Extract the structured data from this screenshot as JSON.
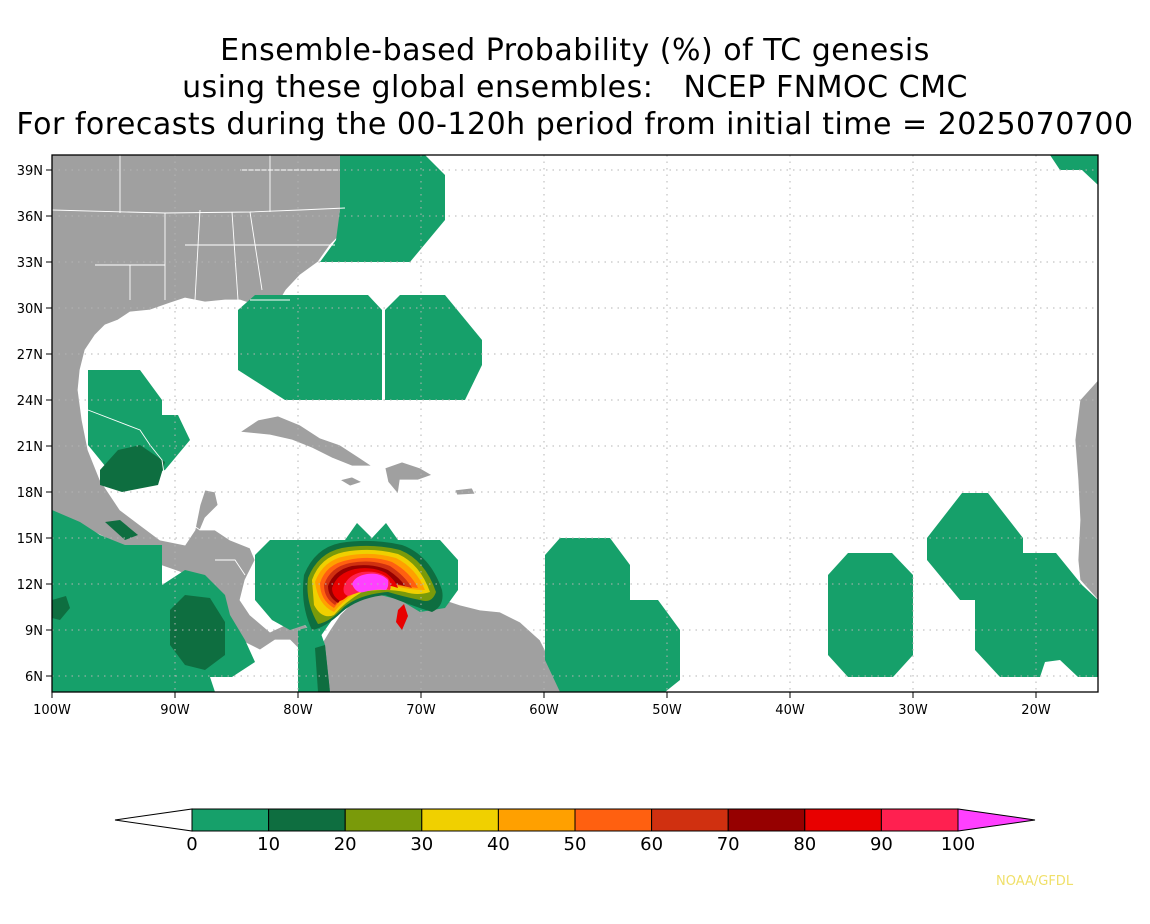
{
  "title": {
    "line1": "Ensemble-based Probability (%) of TC genesis",
    "line2": "using these global ensembles:   NCEP FNMOC CMC",
    "line3": "For forecasts during the 00-120h period from initial time = 2025070700"
  },
  "map": {
    "lat_labels": [
      "39N",
      "36N",
      "33N",
      "30N",
      "27N",
      "24N",
      "21N",
      "18N",
      "15N",
      "12N",
      "9N",
      "6N"
    ],
    "lon_labels": [
      "100W",
      "90W",
      "80W",
      "70W",
      "60W",
      "50W",
      "40W",
      "30W",
      "20W"
    ],
    "lat_range": [
      5,
      40
    ],
    "lon_range": [
      -100,
      -15
    ],
    "land_color": "#a0a0a0",
    "grid": "dotted"
  },
  "colorbar": {
    "labels": [
      "0",
      "10",
      "20",
      "30",
      "40",
      "50",
      "60",
      "70",
      "80",
      "90",
      "100"
    ],
    "colors": [
      "#ffffff",
      "#16a06a",
      "#0e6e40",
      "#7a9a0a",
      "#f0d000",
      "#ffa000",
      "#ff6010",
      "#d03010",
      "#960000",
      "#e80000",
      "#ff2050",
      "#ff40ff"
    ]
  },
  "credit": "NOAA/GFDL"
}
